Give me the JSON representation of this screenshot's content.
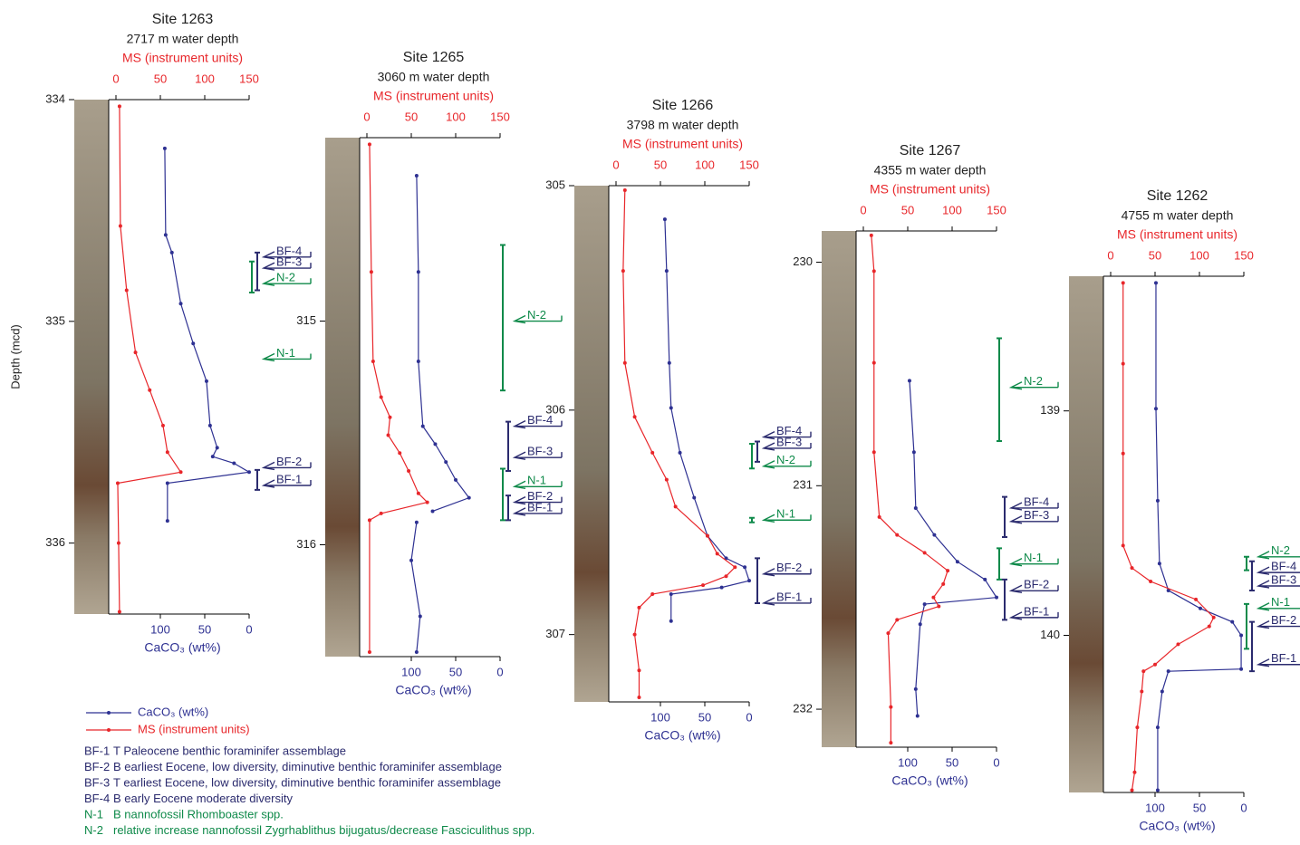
{
  "chart_data": [
    {
      "type": "line",
      "title": "Site 1263",
      "subtitle": "2717 m water depth",
      "x_label": "MS (instrument units)",
      "x2_label": "CaCO₃ (wt%)",
      "y_label": "Depth (mcd)",
      "xlim": [
        0,
        150
      ],
      "xticks": [
        0,
        50,
        100,
        150
      ],
      "x2lim": [
        150,
        0
      ],
      "x2ticks": [
        100,
        50,
        0
      ],
      "ylim": [
        334,
        336.32
      ],
      "yticks": [
        334,
        335,
        336
      ],
      "series": [
        {
          "name": "CaCO₃ (wt%)",
          "color": "#2e3192",
          "axis": "x2",
          "depth": [
            334.22,
            334.61,
            334.69,
            334.92,
            335.1,
            335.27,
            335.47,
            335.57,
            335.61,
            335.64,
            335.68,
            335.73,
            335.9
          ],
          "values": [
            95,
            94,
            87,
            77,
            63,
            48,
            44,
            36,
            41,
            17,
            0,
            92,
            92
          ]
        },
        {
          "name": "MS (instrument units)",
          "color": "#e8262a",
          "depth": [
            334.03,
            334.57,
            334.86,
            335.14,
            335.31,
            335.47,
            335.59,
            335.68,
            335.73,
            336.0,
            336.31
          ],
          "values": [
            4,
            5,
            12,
            22,
            38,
            53,
            58,
            73,
            2,
            3,
            4
          ]
        }
      ],
      "events": [
        {
          "label": "BF-4",
          "depth": 334.71,
          "color": "#2b2b6e"
        },
        {
          "label": "BF-3",
          "depth": 334.76,
          "color": "#2b2b6e"
        },
        {
          "label": "N-2",
          "depth": 334.83,
          "color": "#0f8a4a"
        },
        {
          "label": "N-1",
          "depth": 335.17,
          "color": "#0f8a4a"
        },
        {
          "label": "BF-2",
          "depth": 335.66,
          "color": "#2b2b6e"
        },
        {
          "label": "BF-1",
          "depth": 335.74,
          "color": "#2b2b6e"
        }
      ],
      "brackets": [
        {
          "range": [
            334.69,
            334.86
          ],
          "color": "#2b2b6e"
        },
        {
          "range": [
            334.73,
            334.87
          ],
          "color": "#0f8a4a"
        },
        {
          "range": [
            335.67,
            335.76
          ],
          "color": "#2b2b6e"
        }
      ]
    },
    {
      "type": "line",
      "title": "Site 1265",
      "subtitle": "3060 m water depth",
      "x_label": "MS (instrument units)",
      "x2_label": "CaCO₃ (wt%)",
      "xlim": [
        0,
        150
      ],
      "xticks": [
        0,
        50,
        100,
        150
      ],
      "x2lim": [
        150,
        0
      ],
      "x2ticks": [
        100,
        50,
        0
      ],
      "ylim": [
        314.18,
        316.5
      ],
      "yticks": [
        315,
        316
      ],
      "series": [
        {
          "name": "CaCO₃ (wt%)",
          "color": "#2e3192",
          "axis": "x2",
          "depth": [
            314.35,
            314.78,
            315.18,
            315.47,
            315.55,
            315.63,
            315.71,
            315.79,
            315.85,
            null,
            315.9,
            316.07,
            316.32,
            316.48
          ],
          "values": [
            94,
            92,
            92,
            87,
            73,
            61,
            50,
            35,
            76,
            null,
            94,
            100,
            90,
            94
          ]
        },
        {
          "name": "MS (instrument units)",
          "color": "#e8262a",
          "depth": [
            314.21,
            314.78,
            315.18,
            315.34,
            315.43,
            315.51,
            315.59,
            315.67,
            315.77,
            315.81,
            315.86,
            315.89,
            316.48
          ],
          "values": [
            3,
            5,
            7,
            16,
            26,
            24,
            37,
            47,
            58,
            68,
            16,
            3,
            3
          ]
        }
      ],
      "events": [
        {
          "label": "N-2",
          "depth": 315.0,
          "color": "#0f8a4a"
        },
        {
          "label": "BF-4",
          "depth": 315.47,
          "color": "#2b2b6e"
        },
        {
          "label": "BF-3",
          "depth": 315.61,
          "color": "#2b2b6e"
        },
        {
          "label": "N-1",
          "depth": 315.74,
          "color": "#0f8a4a"
        },
        {
          "label": "BF-2",
          "depth": 315.81,
          "color": "#2b2b6e"
        },
        {
          "label": "BF-1",
          "depth": 315.86,
          "color": "#2b2b6e"
        }
      ],
      "brackets": [
        {
          "range": [
            314.66,
            315.31
          ],
          "color": "#0f8a4a"
        },
        {
          "range": [
            315.45,
            315.67
          ],
          "color": "#2b2b6e"
        },
        {
          "range": [
            315.66,
            315.89
          ],
          "color": "#0f8a4a"
        },
        {
          "range": [
            315.78,
            315.89
          ],
          "color": "#2b2b6e"
        }
      ]
    },
    {
      "type": "line",
      "title": "Site 1266",
      "subtitle": "3798 m water depth",
      "x_label": "MS (instrument units)",
      "x2_label": "CaCO₃ (wt%)",
      "xlim": [
        0,
        150
      ],
      "xticks": [
        0,
        50,
        100,
        150
      ],
      "x2lim": [
        150,
        0
      ],
      "x2ticks": [
        100,
        50,
        0
      ],
      "ylim": [
        305,
        307.3
      ],
      "yticks": [
        305,
        306,
        307
      ],
      "series": [
        {
          "name": "CaCO₃ (wt%)",
          "color": "#2e3192",
          "axis": "x2",
          "depth": [
            305.15,
            305.38,
            305.79,
            305.99,
            306.19,
            306.39,
            306.56,
            306.66,
            306.7,
            306.76,
            306.79,
            306.82,
            306.94
          ],
          "values": [
            95,
            93,
            90,
            88,
            78,
            62,
            47,
            26,
            5,
            0,
            31,
            88,
            88
          ]
        },
        {
          "name": "MS (instrument units)",
          "color": "#e8262a",
          "depth": [
            305.02,
            305.38,
            305.79,
            306.03,
            306.19,
            306.31,
            306.43,
            306.56,
            306.64,
            306.7,
            306.74,
            306.78,
            306.82,
            306.88,
            307.0,
            307.16,
            307.28
          ],
          "values": [
            10,
            8,
            10,
            21,
            41,
            57,
            67,
            103,
            114,
            134,
            124,
            98,
            41,
            26,
            21,
            26,
            26
          ]
        }
      ],
      "events": [
        {
          "label": "BF-4",
          "depth": 306.12,
          "color": "#2b2b6e"
        },
        {
          "label": "BF-3",
          "depth": 306.17,
          "color": "#2b2b6e"
        },
        {
          "label": "N-2",
          "depth": 306.25,
          "color": "#0f8a4a"
        },
        {
          "label": "N-1",
          "depth": 306.49,
          "color": "#0f8a4a"
        },
        {
          "label": "BF-2",
          "depth": 306.73,
          "color": "#2b2b6e"
        },
        {
          "label": "BF-1",
          "depth": 306.86,
          "color": "#2b2b6e"
        }
      ],
      "brackets": [
        {
          "range": [
            306.14,
            306.23
          ],
          "color": "#2b2b6e"
        },
        {
          "range": [
            306.15,
            306.26
          ],
          "color": "#0f8a4a"
        },
        {
          "range": [
            306.48,
            306.5
          ],
          "color": "#0f8a4a"
        },
        {
          "range": [
            306.66,
            306.86
          ],
          "color": "#2b2b6e"
        }
      ]
    },
    {
      "type": "line",
      "title": "Site 1267",
      "subtitle": "4355 m water depth",
      "x_label": "MS (instrument units)",
      "x2_label": "CaCO₃ (wt%)",
      "xlim": [
        0,
        150
      ],
      "xticks": [
        0,
        50,
        100,
        150
      ],
      "x2lim": [
        150,
        0
      ],
      "x2ticks": [
        100,
        50,
        0
      ],
      "ylim": [
        229.86,
        232.17
      ],
      "yticks": [
        230,
        231,
        232
      ],
      "series": [
        {
          "name": "CaCO₃ (wt%)",
          "color": "#2e3192",
          "axis": "x2",
          "depth": [
            230.53,
            230.85,
            231.1,
            231.22,
            231.34,
            231.42,
            231.5,
            231.53,
            231.62,
            231.91,
            232.03
          ],
          "values": [
            98,
            93,
            91,
            70,
            44,
            13,
            0,
            81,
            86,
            91,
            89
          ]
        },
        {
          "name": "MS (instrument units)",
          "color": "#e8262a",
          "depth": [
            229.88,
            230.04,
            230.45,
            230.85,
            231.14,
            231.22,
            231.3,
            231.38,
            231.44,
            231.5,
            231.54,
            231.6,
            231.66,
            231.99,
            232.15
          ],
          "values": [
            9,
            12,
            12,
            12,
            18,
            38,
            69,
            95,
            90,
            79,
            85,
            38,
            28,
            31,
            31
          ]
        }
      ],
      "events": [
        {
          "label": "N-2",
          "depth": 230.56,
          "color": "#0f8a4a"
        },
        {
          "label": "BF-4",
          "depth": 231.1,
          "color": "#2b2b6e"
        },
        {
          "label": "BF-3",
          "depth": 231.16,
          "color": "#2b2b6e"
        },
        {
          "label": "N-1",
          "depth": 231.35,
          "color": "#0f8a4a"
        },
        {
          "label": "BF-2",
          "depth": 231.47,
          "color": "#2b2b6e"
        },
        {
          "label": "BF-1",
          "depth": 231.59,
          "color": "#2b2b6e"
        }
      ],
      "brackets": [
        {
          "range": [
            230.34,
            230.8
          ],
          "color": "#0f8a4a"
        },
        {
          "range": [
            231.05,
            231.23
          ],
          "color": "#2b2b6e"
        },
        {
          "range": [
            231.28,
            231.42
          ],
          "color": "#0f8a4a"
        },
        {
          "range": [
            231.42,
            231.6
          ],
          "color": "#2b2b6e"
        }
      ]
    },
    {
      "type": "line",
      "title": "Site 1262",
      "subtitle": "4755 m water depth",
      "x_label": "MS (instrument units)",
      "x2_label": "CaCO₃ (wt%)",
      "xlim": [
        0,
        150
      ],
      "xticks": [
        0,
        50,
        100,
        150
      ],
      "x2lim": [
        150,
        0
      ],
      "x2ticks": [
        100,
        50,
        0
      ],
      "ylim": [
        138.4,
        140.7
      ],
      "yticks": [
        139,
        140
      ],
      "series": [
        {
          "name": "CaCO₃ (wt%)",
          "color": "#2e3192",
          "axis": "x2",
          "depth": [
            138.43,
            138.99,
            139.4,
            139.68,
            139.8,
            139.88,
            139.94,
            140.0,
            140.15,
            140.16,
            140.25,
            140.41,
            140.69
          ],
          "values": [
            99,
            99,
            97,
            95,
            85,
            49,
            13,
            3,
            3,
            85,
            92,
            97,
            97
          ]
        },
        {
          "name": "MS (instrument units)",
          "color": "#e8262a",
          "depth": [
            138.43,
            138.79,
            139.19,
            139.6,
            139.7,
            139.76,
            139.84,
            139.92,
            139.96,
            140.04,
            140.13,
            140.16,
            140.25,
            140.41,
            140.61,
            140.69
          ],
          "values": [
            14,
            14,
            14,
            14,
            24,
            45,
            96,
            116,
            111,
            76,
            50,
            37,
            35,
            30,
            27,
            24
          ]
        }
      ],
      "events": [
        {
          "label": "N-2",
          "depth": 139.65,
          "color": "#0f8a4a"
        },
        {
          "label": "BF-4",
          "depth": 139.72,
          "color": "#2b2b6e"
        },
        {
          "label": "BF-3",
          "depth": 139.78,
          "color": "#2b2b6e"
        },
        {
          "label": "N-1",
          "depth": 139.88,
          "color": "#0f8a4a"
        },
        {
          "label": "BF-2",
          "depth": 139.96,
          "color": "#2b2b6e"
        },
        {
          "label": "BF-1",
          "depth": 140.13,
          "color": "#2b2b6e"
        }
      ],
      "brackets": [
        {
          "range": [
            139.65,
            139.71
          ],
          "color": "#0f8a4a"
        },
        {
          "range": [
            139.67,
            139.8
          ],
          "color": "#2b2b6e"
        },
        {
          "range": [
            139.86,
            140.06
          ],
          "color": "#0f8a4a"
        },
        {
          "range": [
            139.94,
            140.16
          ],
          "color": "#2b2b6e"
        }
      ]
    }
  ],
  "notes": [
    {
      "code": "BF-1",
      "text": "T Paleocene benthic foraminifer assemblage",
      "color": "#2b2b6e"
    },
    {
      "code": "BF-2",
      "text": "B earliest Eocene, low diversity, diminutive benthic foraminifer assemblage",
      "color": "#2b2b6e"
    },
    {
      "code": "BF-3",
      "text": "T earliest Eocene, low diversity, diminutive benthic foraminifer assemblage",
      "color": "#2b2b6e"
    },
    {
      "code": "BF-4",
      "text": "B early Eocene moderate diversity",
      "color": "#2b2b6e"
    },
    {
      "code": "N-1",
      "text": "B nannofossil Rhomboaster spp.",
      "color": "#0f8a4a"
    },
    {
      "code": "N-2",
      "text": "relative increase nannofossil Zygrhablithus bijugatus/decrease Fasciculithus spp.",
      "color": "#0f8a4a"
    }
  ]
}
